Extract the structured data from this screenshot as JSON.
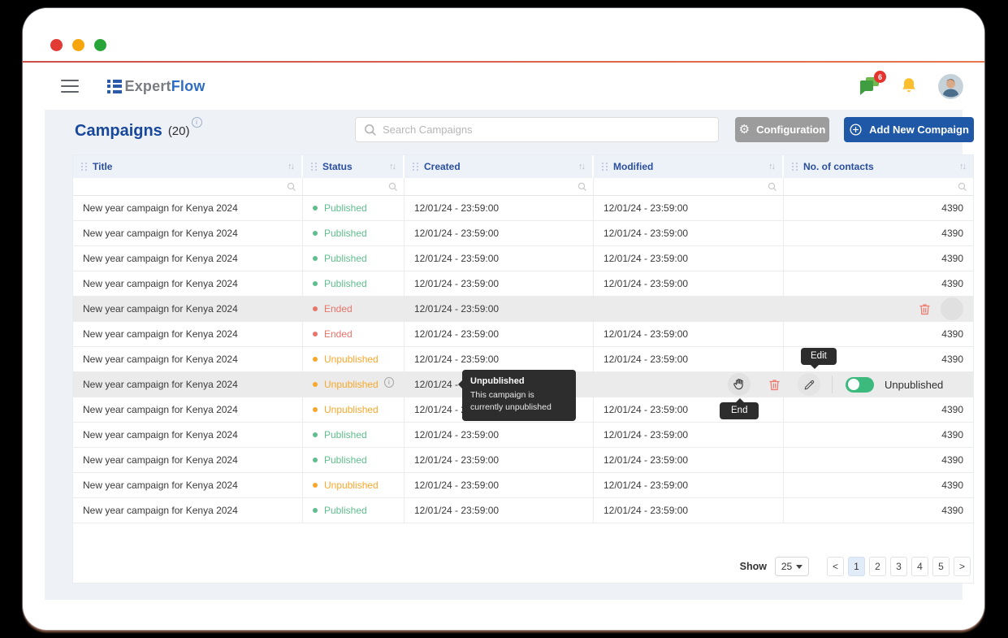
{
  "window": {
    "traffic_lights": [
      "#e23b34",
      "#f6a60b",
      "#27a539"
    ],
    "accent_color": "#dd6550"
  },
  "topbar": {
    "brand_gray": "Expert",
    "brand_blue": "Flow",
    "chat_badge": "6"
  },
  "page_header": {
    "title": "Campaigns",
    "count": "(20)",
    "search_placeholder": "Search Campaigns",
    "configuration_label": "Configuration",
    "add_campaign_label": "Add New Compaign"
  },
  "table": {
    "columns": [
      "Title",
      "Status",
      "Created",
      "Modified",
      "No. of contacts"
    ],
    "sort_icon": "↑↓",
    "status_colors": {
      "published": "#5fbe8d",
      "unpublished": "#f9a72b",
      "ended": "#e8746a"
    },
    "rows": [
      {
        "title": "New year campaign for Kenya 2024",
        "status": "Published",
        "status_type": "published",
        "created": "12/01/24 - 23:59:00",
        "modified": "12/01/24 - 23:59:00",
        "contacts": "4390",
        "variant": "normal"
      },
      {
        "title": "New year campaign for Kenya 2024",
        "status": "Published",
        "status_type": "published",
        "created": "12/01/24 - 23:59:00",
        "modified": "12/01/24 - 23:59:00",
        "contacts": "4390",
        "variant": "normal"
      },
      {
        "title": "New year campaign for Kenya 2024",
        "status": "Published",
        "status_type": "published",
        "created": "12/01/24 - 23:59:00",
        "modified": "12/01/24 - 23:59:00",
        "contacts": "4390",
        "variant": "normal"
      },
      {
        "title": "New year campaign for Kenya 2024",
        "status": "Published",
        "status_type": "published",
        "created": "12/01/24 - 23:59:00",
        "modified": "12/01/24 - 23:59:00",
        "contacts": "4390",
        "variant": "normal"
      },
      {
        "title": "New year campaign for Kenya 2024",
        "status": "Ended",
        "status_type": "ended",
        "created": "12/01/24 - 23:59:00",
        "modified": "",
        "contacts": "",
        "variant": "delete-hover"
      },
      {
        "title": "New year campaign for Kenya 2024",
        "status": "Ended",
        "status_type": "ended",
        "created": "12/01/24 - 23:59:00",
        "modified": "12/01/24 - 23:59:00",
        "contacts": "4390",
        "variant": "normal"
      },
      {
        "title": "New year campaign for Kenya 2024",
        "status": "Unpublished",
        "status_type": "unpublished",
        "created": "12/01/24 - 23:59:00",
        "modified": "12/01/24 - 23:59:00",
        "contacts": "4390",
        "variant": "normal"
      },
      {
        "title": "New year campaign for Kenya 2024",
        "status": "Unpublished",
        "status_type": "unpublished",
        "created": "12/01/24 - 23:59:00",
        "modified": "",
        "contacts": "",
        "variant": "actions-hover",
        "has_info": true
      },
      {
        "title": "New year campaign for Kenya 2024",
        "status": "Unpublished",
        "status_type": "unpublished",
        "created": "12/01/24 - 23:59:00",
        "modified": "12/01/24 - 23:59:00",
        "contacts": "4390",
        "variant": "normal"
      },
      {
        "title": "New year campaign for Kenya 2024",
        "status": "Published",
        "status_type": "published",
        "created": "12/01/24 - 23:59:00",
        "modified": "12/01/24 - 23:59:00",
        "contacts": "4390",
        "variant": "normal"
      },
      {
        "title": "New year campaign for Kenya 2024",
        "status": "Published",
        "status_type": "published",
        "created": "12/01/24 - 23:59:00",
        "modified": "12/01/24 - 23:59:00",
        "contacts": "4390",
        "variant": "normal"
      },
      {
        "title": "New year campaign for Kenya 2024",
        "status": "Unpublished",
        "status_type": "unpublished",
        "created": "12/01/24 - 23:59:00",
        "modified": "12/01/24 - 23:59:00",
        "contacts": "4390",
        "variant": "normal"
      },
      {
        "title": "New year campaign for Kenya 2024",
        "status": "Published",
        "status_type": "published",
        "created": "12/01/24 - 23:59:00",
        "modified": "12/01/24 - 23:59:00",
        "contacts": "4390",
        "variant": "normal"
      }
    ]
  },
  "row_actions": {
    "toggle_label": "Unpublished"
  },
  "tooltips": {
    "status_title": "Unpublished",
    "status_line": "This campaign is currently unpublished",
    "edit": "Edit",
    "end": "End"
  },
  "pagination": {
    "show_label": "Show",
    "page_size": "25",
    "prev": "<",
    "pages": [
      "1",
      "2",
      "3",
      "4",
      "5"
    ],
    "next": ">",
    "active_page": "1"
  }
}
